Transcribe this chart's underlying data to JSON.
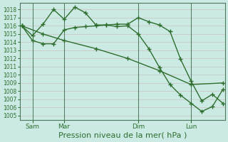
{
  "bg_color": "#cceae4",
  "grid_color": "#c8d8d0",
  "grid_color_minor": "#ddeee8",
  "line_color": "#2d6e2d",
  "marker": "+",
  "markersize": 4,
  "linewidth": 1.0,
  "xlabel": "Pression niveau de la mer( hPa )",
  "xlabel_fontsize": 8,
  "ylim": [
    1004.5,
    1018.8
  ],
  "yticks": [
    1005,
    1006,
    1007,
    1008,
    1009,
    1010,
    1011,
    1012,
    1013,
    1014,
    1015,
    1016,
    1017,
    1018
  ],
  "ytick_fontsize": 5.5,
  "xtick_fontsize": 6.5,
  "day_labels": [
    "Sam",
    "Mar",
    "Dim",
    "Lun"
  ],
  "day_positions": [
    1,
    4,
    11,
    16
  ],
  "vline_positions": [
    1,
    4,
    11,
    16
  ],
  "xlim": [
    -0.2,
    19.2
  ],
  "line1_x": [
    0,
    1,
    2,
    3,
    4,
    5,
    6,
    7,
    8,
    9,
    10,
    11,
    12,
    13,
    14,
    15,
    16,
    17,
    18,
    19
  ],
  "line1_y": [
    1016.0,
    1014.8,
    1016.2,
    1018.0,
    1016.8,
    1018.3,
    1017.6,
    1016.1,
    1016.1,
    1016.2,
    1016.2,
    1017.0,
    1016.5,
    1016.1,
    1015.3,
    1011.9,
    1009.2,
    1006.8,
    1007.6,
    1006.5
  ],
  "line2_x": [
    0,
    1,
    2,
    3,
    4,
    5,
    6,
    7,
    8,
    9,
    10,
    11,
    12,
    13,
    14,
    15,
    16,
    17,
    18,
    19
  ],
  "line2_y": [
    1016.0,
    1014.2,
    1013.8,
    1013.8,
    1015.5,
    1015.8,
    1015.9,
    1016.0,
    1016.1,
    1015.9,
    1016.0,
    1015.0,
    1013.2,
    1010.9,
    1008.8,
    1007.5,
    1006.5,
    1005.5,
    1006.1,
    1008.2
  ],
  "line3_x": [
    0,
    2,
    4,
    7,
    10,
    13,
    16,
    19
  ],
  "line3_y": [
    1016.0,
    1015.0,
    1014.2,
    1013.2,
    1012.0,
    1010.5,
    1008.8,
    1009.0
  ]
}
